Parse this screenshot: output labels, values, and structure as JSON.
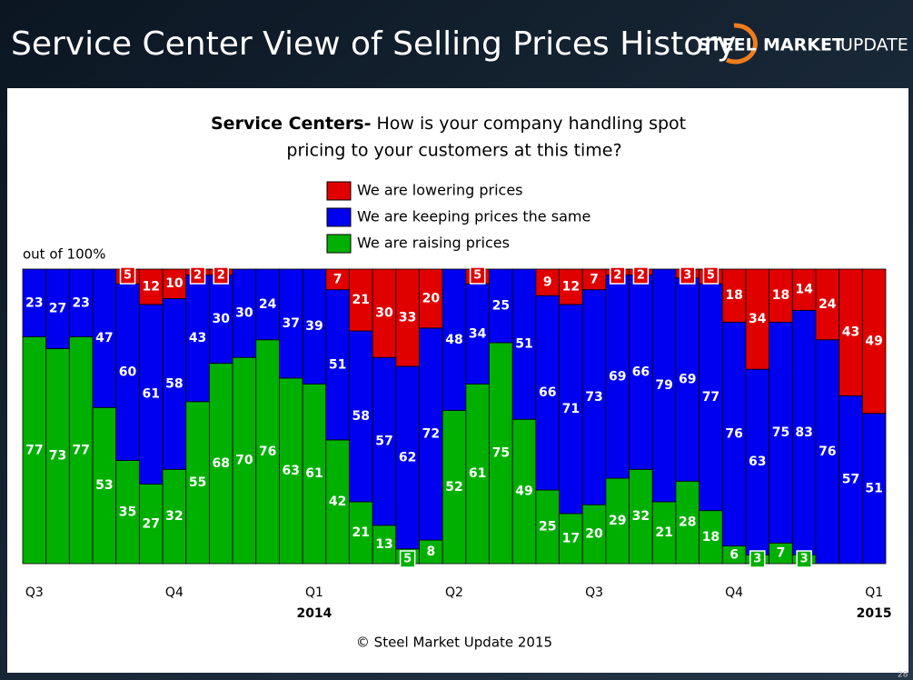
{
  "header": {
    "title": "Service Center View of Selling Prices History",
    "logo": [
      "STEEL",
      "MARKET",
      "UPDATE"
    ]
  },
  "chart_data": {
    "type": "stacked-bar",
    "subtitle_bold": "Service Centers-",
    "subtitle_lines": [
      "How is your company handling spot",
      "pricing to your customers at this time?"
    ],
    "y_label": "out of 100%",
    "categories": [
      "Q3",
      null,
      null,
      null,
      null,
      null,
      "Q4",
      null,
      null,
      null,
      null,
      null,
      "Q1",
      null,
      null,
      null,
      null,
      null,
      "Q2",
      null,
      null,
      null,
      null,
      null,
      "Q3",
      null,
      null,
      null,
      null,
      null,
      "Q4",
      null,
      null,
      null,
      null,
      null,
      "Q1"
    ],
    "years": [
      null,
      null,
      null,
      null,
      null,
      null,
      null,
      null,
      null,
      null,
      null,
      null,
      "2014",
      null,
      null,
      null,
      null,
      null,
      null,
      null,
      null,
      null,
      null,
      null,
      null,
      null,
      null,
      null,
      null,
      null,
      null,
      null,
      null,
      null,
      null,
      null,
      "2015"
    ],
    "ylim": [
      0,
      100
    ],
    "series": [
      {
        "name": "We are raising prices",
        "color": "#00b000",
        "values": [
          77,
          73,
          77,
          53,
          35,
          27,
          32,
          55,
          68,
          70,
          76,
          63,
          61,
          42,
          21,
          13,
          5,
          8,
          52,
          61,
          75,
          49,
          25,
          17,
          20,
          29,
          32,
          21,
          28,
          18,
          6,
          3,
          7,
          3,
          null,
          null,
          null
        ]
      },
      {
        "name": "We are keeping prices the same",
        "color": "#0000f0",
        "values": [
          23,
          27,
          23,
          47,
          60,
          61,
          58,
          43,
          30,
          30,
          24,
          37,
          39,
          51,
          58,
          57,
          62,
          72,
          48,
          34,
          25,
          51,
          66,
          71,
          73,
          69,
          66,
          79,
          69,
          77,
          76,
          63,
          75,
          83,
          76,
          57,
          51
        ]
      },
      {
        "name": "We are lowering prices",
        "color": "#e00000",
        "values": [
          null,
          null,
          null,
          null,
          5,
          12,
          10,
          2,
          2,
          null,
          null,
          null,
          null,
          7,
          21,
          30,
          33,
          20,
          null,
          5,
          null,
          null,
          9,
          12,
          7,
          2,
          2,
          null,
          3,
          5,
          18,
          34,
          18,
          14,
          24,
          43,
          49
        ]
      }
    ],
    "source": "© Steel Market Update 2015"
  },
  "page_number": "28"
}
